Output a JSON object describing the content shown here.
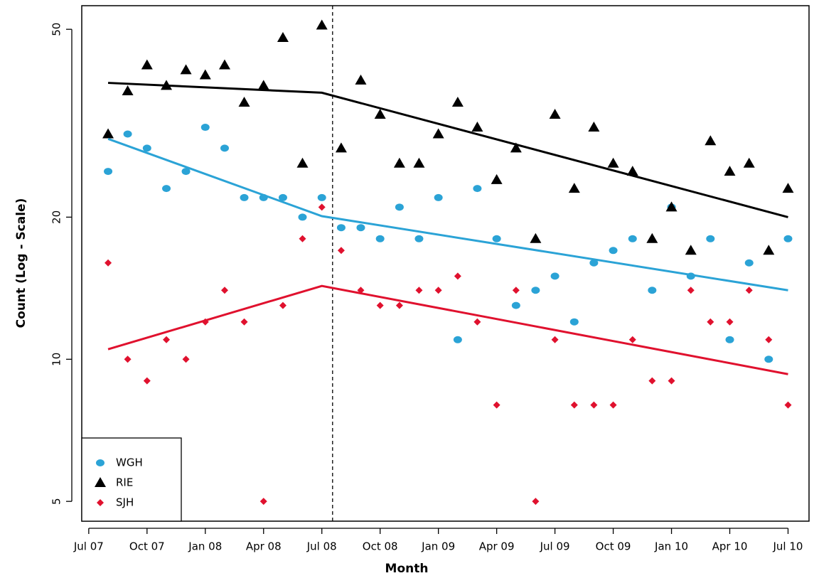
{
  "chart_data": {
    "type": "scatter",
    "xlabel": "Month",
    "ylabel": "Count (Log - Scale)",
    "log_y": true,
    "legend": "bottom-left",
    "xlim": [
      2007.47,
      2010.59
    ],
    "ylim": [
      4.54,
      56.1
    ],
    "xticks": [
      {
        "value": 2007.5,
        "label": "Jul 07"
      },
      {
        "value": 2007.75,
        "label": "Oct 07"
      },
      {
        "value": 2008.0,
        "label": "Jan 08"
      },
      {
        "value": 2008.25,
        "label": "Apr 08"
      },
      {
        "value": 2008.5,
        "label": "Jul 08"
      },
      {
        "value": 2008.75,
        "label": "Oct 08"
      },
      {
        "value": 2009.0,
        "label": "Jan 09"
      },
      {
        "value": 2009.25,
        "label": "Apr 09"
      },
      {
        "value": 2009.5,
        "label": "Jul 09"
      },
      {
        "value": 2009.75,
        "label": "Oct 09"
      },
      {
        "value": 2010.0,
        "label": "Jan 10"
      },
      {
        "value": 2010.25,
        "label": "Apr 10"
      },
      {
        "value": 2010.5,
        "label": "Jul 10"
      }
    ],
    "yticks": [
      5,
      10,
      20,
      50
    ],
    "vline": 2008.546,
    "x": [
      2007.583,
      2007.667,
      2007.75,
      2007.833,
      2007.917,
      2008.0,
      2008.083,
      2008.167,
      2008.25,
      2008.333,
      2008.417,
      2008.5,
      2008.583,
      2008.667,
      2008.75,
      2008.833,
      2008.917,
      2009.0,
      2009.083,
      2009.167,
      2009.25,
      2009.333,
      2009.417,
      2009.5,
      2009.583,
      2009.667,
      2009.75,
      2009.833,
      2009.917,
      2010.0,
      2010.083,
      2010.167,
      2010.25,
      2010.333,
      2010.417,
      2010.5
    ],
    "series": [
      {
        "name": "WGH",
        "color": "#2ba3d6",
        "marker": "circle",
        "values": [
          25,
          30,
          28,
          23,
          25,
          31,
          28,
          22,
          22,
          22,
          20,
          22,
          19,
          19,
          18,
          21,
          18,
          22,
          11,
          23,
          18,
          13,
          14,
          15,
          12,
          16,
          17,
          18,
          14,
          21,
          15,
          18,
          11,
          16,
          10,
          18
        ],
        "trend": {
          "x": [
            2007.583,
            2008.5,
            2010.5
          ],
          "values": [
            29.3,
            20.1,
            14.0
          ]
        }
      },
      {
        "name": "RIE",
        "color": "#000000",
        "marker": "triangle",
        "values": [
          30,
          37,
          42,
          38,
          41,
          40,
          42,
          35,
          38,
          48,
          26,
          51,
          28,
          39,
          33,
          26,
          26,
          30,
          35,
          31,
          24,
          28,
          18,
          33,
          23,
          31,
          26,
          25,
          18,
          21,
          17,
          29,
          25,
          26,
          17,
          23
        ],
        "trend": {
          "x": [
            2007.583,
            2008.5,
            2010.5
          ],
          "values": [
            38.5,
            36.7,
            20.0
          ]
        }
      },
      {
        "name": "SJH",
        "color": "#e0112e",
        "marker": "diamond",
        "values": [
          16,
          10,
          9,
          11,
          10,
          12,
          14,
          12,
          5,
          13,
          18,
          21,
          17,
          14,
          13,
          13,
          14,
          14,
          15,
          12,
          8,
          14,
          5,
          11,
          8,
          8,
          8,
          11,
          9,
          9,
          14,
          12,
          12,
          14,
          11,
          8
        ],
        "trend": {
          "x": [
            2007.583,
            2008.5,
            2010.5
          ],
          "values": [
            10.5,
            14.3,
            9.3
          ]
        }
      }
    ]
  }
}
